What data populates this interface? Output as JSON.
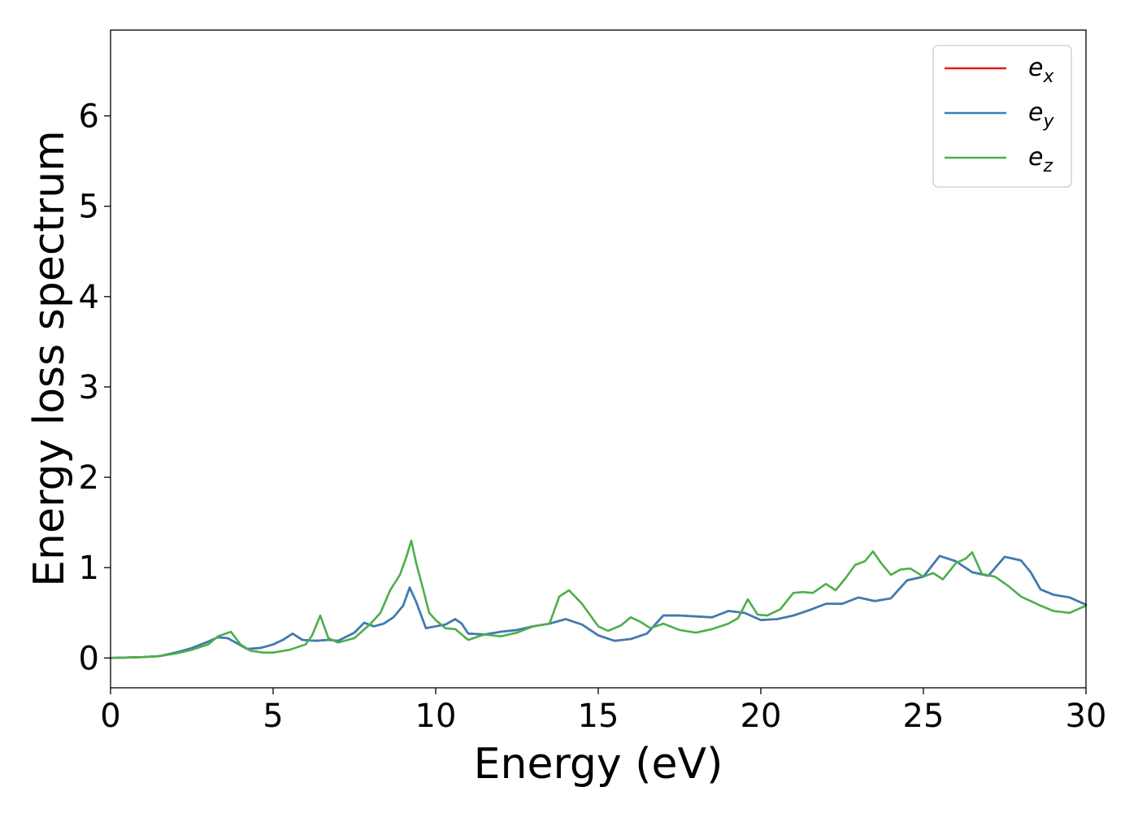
{
  "chart_data": {
    "type": "line",
    "title": "",
    "xlabel": "Energy (eV)",
    "ylabel": "Energy loss spectrum",
    "xlim": [
      0,
      30
    ],
    "ylim": [
      -0.33,
      6.95
    ],
    "xticks": [
      0,
      5,
      10,
      15,
      20,
      25,
      30
    ],
    "yticks": [
      0,
      1,
      2,
      3,
      4,
      5,
      6
    ],
    "grid": false,
    "legend_position": "top-right",
    "series": [
      {
        "name": "e",
        "subscript": "x",
        "color": "#e41a1c",
        "x": [
          0,
          1,
          1.5,
          2,
          2.5,
          3,
          3.3,
          3.6,
          3.9,
          4.2,
          4.6,
          5,
          5.3,
          5.6,
          5.9,
          6.3,
          6.7,
          7,
          7.5,
          7.8,
          8.1,
          8.4,
          8.7,
          9,
          9.2,
          9.4,
          9.7,
          10,
          10.3,
          10.6,
          10.8,
          11,
          11.5,
          12,
          12.5,
          13,
          13.5,
          14,
          14.5,
          15,
          15.5,
          16,
          16.5,
          17,
          17.5,
          18,
          18.5,
          19,
          19.5,
          20,
          20.5,
          21,
          21.5,
          22,
          22.5,
          23,
          23.5,
          24,
          24.5,
          25,
          25.5,
          26,
          26.5,
          27,
          27.5,
          28,
          28.3,
          28.6,
          29,
          29.5,
          30
        ],
        "y": [
          0,
          0.01,
          0.02,
          0.06,
          0.11,
          0.18,
          0.23,
          0.22,
          0.16,
          0.1,
          0.11,
          0.15,
          0.2,
          0.27,
          0.2,
          0.19,
          0.2,
          0.19,
          0.28,
          0.39,
          0.35,
          0.38,
          0.45,
          0.58,
          0.78,
          0.62,
          0.33,
          0.35,
          0.37,
          0.43,
          0.38,
          0.27,
          0.26,
          0.29,
          0.31,
          0.35,
          0.38,
          0.43,
          0.37,
          0.25,
          0.19,
          0.21,
          0.27,
          0.47,
          0.47,
          0.46,
          0.45,
          0.52,
          0.5,
          0.42,
          0.43,
          0.47,
          0.53,
          0.6,
          0.6,
          0.67,
          0.63,
          0.66,
          0.86,
          0.9,
          1.13,
          1.07,
          0.95,
          0.91,
          1.12,
          1.08,
          0.95,
          0.76,
          0.7,
          0.67,
          0.59
        ]
      },
      {
        "name": "e",
        "subscript": "y",
        "color": "#377eb8",
        "x": [
          0,
          1,
          1.5,
          2,
          2.5,
          3,
          3.3,
          3.6,
          3.9,
          4.2,
          4.6,
          5,
          5.3,
          5.6,
          5.9,
          6.3,
          6.7,
          7,
          7.5,
          7.8,
          8.1,
          8.4,
          8.7,
          9,
          9.2,
          9.4,
          9.7,
          10,
          10.3,
          10.6,
          10.8,
          11,
          11.5,
          12,
          12.5,
          13,
          13.5,
          14,
          14.5,
          15,
          15.5,
          16,
          16.5,
          17,
          17.5,
          18,
          18.5,
          19,
          19.5,
          20,
          20.5,
          21,
          21.5,
          22,
          22.5,
          23,
          23.5,
          24,
          24.5,
          25,
          25.5,
          26,
          26.5,
          27,
          27.5,
          28,
          28.3,
          28.6,
          29,
          29.5,
          30
        ],
        "y": [
          0,
          0.01,
          0.02,
          0.06,
          0.11,
          0.18,
          0.23,
          0.22,
          0.16,
          0.1,
          0.11,
          0.15,
          0.2,
          0.27,
          0.2,
          0.19,
          0.2,
          0.19,
          0.28,
          0.39,
          0.35,
          0.38,
          0.45,
          0.58,
          0.78,
          0.62,
          0.33,
          0.35,
          0.37,
          0.43,
          0.38,
          0.27,
          0.26,
          0.29,
          0.31,
          0.35,
          0.38,
          0.43,
          0.37,
          0.25,
          0.19,
          0.21,
          0.27,
          0.47,
          0.47,
          0.46,
          0.45,
          0.52,
          0.5,
          0.42,
          0.43,
          0.47,
          0.53,
          0.6,
          0.6,
          0.67,
          0.63,
          0.66,
          0.86,
          0.9,
          1.13,
          1.07,
          0.95,
          0.91,
          1.12,
          1.08,
          0.95,
          0.76,
          0.7,
          0.67,
          0.59
        ]
      },
      {
        "name": "e",
        "subscript": "z",
        "color": "#4daf4a",
        "x": [
          0,
          1,
          1.5,
          2,
          2.5,
          3,
          3.3,
          3.7,
          4,
          4.3,
          4.7,
          5,
          5.5,
          6,
          6.2,
          6.45,
          6.7,
          7,
          7.5,
          8,
          8.3,
          8.6,
          8.9,
          9.1,
          9.25,
          9.4,
          9.6,
          9.8,
          10,
          10.3,
          10.6,
          11,
          11.5,
          12,
          12.5,
          13,
          13.5,
          13.8,
          14.1,
          14.5,
          15,
          15.3,
          15.7,
          16,
          16.3,
          16.6,
          17,
          17.5,
          18,
          18.5,
          19,
          19.3,
          19.6,
          19.9,
          20.2,
          20.6,
          21,
          21.3,
          21.6,
          22,
          22.3,
          22.6,
          22.9,
          23.2,
          23.45,
          23.7,
          24,
          24.3,
          24.6,
          25,
          25.3,
          25.6,
          26,
          26.3,
          26.5,
          26.8,
          27.2,
          27.6,
          28,
          28.3,
          28.6,
          29,
          29.5,
          30
        ],
        "y": [
          0,
          0.01,
          0.02,
          0.05,
          0.09,
          0.15,
          0.24,
          0.29,
          0.15,
          0.08,
          0.06,
          0.06,
          0.09,
          0.15,
          0.25,
          0.47,
          0.22,
          0.17,
          0.22,
          0.38,
          0.5,
          0.75,
          0.92,
          1.12,
          1.3,
          1.05,
          0.78,
          0.5,
          0.42,
          0.33,
          0.32,
          0.2,
          0.26,
          0.24,
          0.28,
          0.35,
          0.38,
          0.68,
          0.75,
          0.6,
          0.35,
          0.3,
          0.36,
          0.45,
          0.4,
          0.33,
          0.38,
          0.31,
          0.28,
          0.32,
          0.38,
          0.44,
          0.65,
          0.48,
          0.47,
          0.54,
          0.72,
          0.73,
          0.72,
          0.82,
          0.75,
          0.88,
          1.03,
          1.07,
          1.18,
          1.05,
          0.92,
          0.98,
          0.99,
          0.9,
          0.94,
          0.87,
          1.05,
          1.1,
          1.17,
          0.93,
          0.9,
          0.8,
          0.68,
          0.63,
          0.58,
          0.52,
          0.5,
          0.58
        ]
      }
    ]
  }
}
